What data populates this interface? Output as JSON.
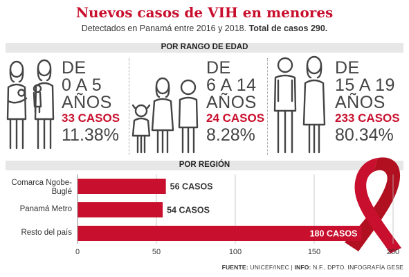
{
  "title": "Nuevos casos de VIH en menores",
  "subtitle_text": "Detectados en Panamá entre 2016 y 2018. ",
  "subtitle_bold": "Total de casos 290.",
  "section_age": "POR RANGO DE EDAD",
  "section_region": "POR REGIÓN",
  "age_groups": [
    {
      "line1": "DE",
      "line2": "0 A 5",
      "line3": "AÑOS",
      "cases": "33 CASOS",
      "percent": "11.38%"
    },
    {
      "line1": "DE",
      "line2": "6 A 14",
      "line3": "AÑOS",
      "cases": "24 CASOS",
      "percent": "8.28%"
    },
    {
      "line1": "DE",
      "line2": "15 A 19",
      "line3": "AÑOS",
      "cases": "233 CASOS",
      "percent": "80.34%"
    }
  ],
  "footer": {
    "fuente_label": "FUENTE:",
    "fuente": " UNICEF/INEC | ",
    "info_label": "INFO:",
    "info": " N.F., DPTO. INFOGRAFÍA GESE"
  },
  "colors": {
    "accent": "#c8102e",
    "ribbon": "#b0101f",
    "people": "#444444"
  },
  "chart_data": {
    "type": "bar",
    "orientation": "horizontal",
    "categories": [
      "Comarca Ngobe-Buglé",
      "Panamá Metro",
      "Resto del país"
    ],
    "values": [
      56,
      54,
      180
    ],
    "data_labels": [
      "56 CASOS",
      "54 CASOS",
      "180 CASOS"
    ],
    "xlim": [
      0,
      200
    ],
    "xticks": [
      0,
      50,
      100,
      150,
      200
    ],
    "grid": true
  }
}
